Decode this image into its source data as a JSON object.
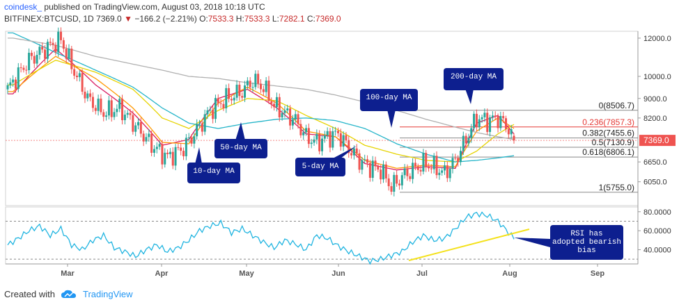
{
  "header": {
    "brand": "coindesk_",
    "published": "published on TradingView.com, August 03, 2018 10:18 UTC",
    "symbol": "BITFINEX:BTCUSD, 1D",
    "last": "7369.0",
    "change": "−166.2 (−2.21%)",
    "o_label": "O:",
    "o": "7533.3",
    "h_label": "H:",
    "h": "7533.3",
    "l_label": "L:",
    "l": "7282.1",
    "c_label": "C:",
    "c": "7369.0"
  },
  "footer": {
    "created": "Created with",
    "brand": "TradingView"
  },
  "colors": {
    "up": "#26a69a",
    "down": "#ef5350",
    "ma5": "#d81b60",
    "ma10": "#ff9800",
    "ma50": "#e6d300",
    "ma100": "#26b5c9",
    "ma200": "#b0b0b0",
    "rsi": "#1fb4e0",
    "trend": "#f4e11a",
    "callout": "#0d1f8f"
  },
  "chart_data": [
    {
      "type": "candlestick",
      "title": "",
      "x_tick_labels": [
        "Mar",
        "Apr",
        "May",
        "Jun",
        "Jul",
        "Aug",
        "Sep"
      ],
      "y_tick_labels": [
        "12000.0",
        "10000.0",
        "9000.0",
        "8200.0",
        "6650.0",
        "6050.0"
      ],
      "y_scale": "log",
      "ylim": [
        5400,
        12400
      ],
      "last_price_label": "7369.0",
      "moving_averages": [
        {
          "name": "5-day MA",
          "anchors": [
            [
              2,
              9200
            ],
            [
              18,
              11400
            ],
            [
              33,
              9600
            ],
            [
              47,
              8400
            ],
            [
              58,
              7200
            ],
            [
              68,
              7400
            ],
            [
              79,
              9000
            ],
            [
              90,
              9400
            ],
            [
              101,
              8600
            ],
            [
              112,
              7600
            ],
            [
              123,
              7500
            ],
            [
              134,
              6600
            ],
            [
              146,
              6400
            ],
            [
              157,
              6500
            ],
            [
              168,
              6450
            ],
            [
              176,
              8000
            ],
            [
              184,
              8300
            ],
            [
              190,
              7600
            ]
          ]
        },
        {
          "name": "10-day MA",
          "anchors": [
            [
              2,
              9300
            ],
            [
              18,
              11000
            ],
            [
              33,
              9900
            ],
            [
              47,
              8600
            ],
            [
              58,
              7300
            ],
            [
              68,
              7250
            ],
            [
              79,
              8800
            ],
            [
              90,
              9500
            ],
            [
              101,
              8800
            ],
            [
              112,
              7700
            ],
            [
              123,
              7500
            ],
            [
              134,
              6700
            ],
            [
              146,
              6450
            ],
            [
              157,
              6550
            ],
            [
              168,
              6500
            ],
            [
              176,
              7700
            ],
            [
              184,
              8200
            ],
            [
              190,
              7800
            ]
          ]
        },
        {
          "name": "50-day MA",
          "anchors": [
            [
              2,
              9600
            ],
            [
              18,
              10800
            ],
            [
              33,
              10200
            ],
            [
              47,
              9400
            ],
            [
              58,
              8200
            ],
            [
              68,
              7800
            ],
            [
              79,
              8500
            ],
            [
              90,
              9000
            ],
            [
              101,
              8900
            ],
            [
              112,
              8300
            ],
            [
              123,
              7800
            ],
            [
              134,
              7200
            ],
            [
              146,
              6900
            ],
            [
              157,
              6700
            ],
            [
              168,
              6650
            ],
            [
              176,
              7000
            ],
            [
              184,
              7600
            ],
            [
              190,
              7950
            ]
          ]
        },
        {
          "name": "100-day MA",
          "anchors": [
            [
              2,
              12300
            ],
            [
              18,
              11200
            ],
            [
              33,
              10300
            ],
            [
              47,
              9500
            ],
            [
              58,
              8600
            ],
            [
              68,
              8000
            ],
            [
              79,
              7800
            ],
            [
              90,
              8000
            ],
            [
              101,
              8150
            ],
            [
              112,
              8200
            ],
            [
              123,
              8100
            ],
            [
              134,
              7800
            ],
            [
              146,
              7250
            ],
            [
              157,
              6900
            ],
            [
              168,
              6650
            ],
            [
              176,
              6700
            ],
            [
              184,
              6780
            ],
            [
              190,
              6850
            ]
          ]
        },
        {
          "name": "200-day MA",
          "anchors": [
            [
              2,
              12000
            ],
            [
              18,
              11600
            ],
            [
              33,
              11000
            ],
            [
              47,
              10600
            ],
            [
              58,
              10300
            ],
            [
              68,
              10000
            ],
            [
              79,
              9900
            ],
            [
              90,
              9700
            ],
            [
              101,
              9550
            ],
            [
              112,
              9400
            ],
            [
              123,
              9150
            ],
            [
              134,
              8850
            ],
            [
              146,
              8500
            ],
            [
              157,
              8150
            ],
            [
              168,
              7850
            ],
            [
              176,
              7650
            ],
            [
              184,
              7500
            ],
            [
              190,
              7400
            ]
          ]
        }
      ],
      "price_anchors": [
        [
          0,
          9400
        ],
        [
          8,
          10800
        ],
        [
          14,
          11400
        ],
        [
          20,
          11900
        ],
        [
          24,
          10500
        ],
        [
          30,
          9000
        ],
        [
          36,
          8400
        ],
        [
          42,
          8600
        ],
        [
          48,
          7900
        ],
        [
          54,
          7200
        ],
        [
          60,
          6800
        ],
        [
          66,
          7100
        ],
        [
          70,
          7600
        ],
        [
          76,
          8500
        ],
        [
          82,
          9000
        ],
        [
          88,
          9300
        ],
        [
          92,
          9800
        ],
        [
          96,
          9500
        ],
        [
          100,
          8700
        ],
        [
          104,
          8400
        ],
        [
          108,
          8100
        ],
        [
          112,
          7500
        ],
        [
          116,
          7300
        ],
        [
          120,
          7500
        ],
        [
          124,
          7600
        ],
        [
          128,
          7100
        ],
        [
          132,
          6700
        ],
        [
          136,
          6500
        ],
        [
          140,
          6400
        ],
        [
          144,
          5900
        ],
        [
          148,
          6200
        ],
        [
          152,
          6400
        ],
        [
          156,
          6600
        ],
        [
          160,
          6500
        ],
        [
          164,
          6300
        ],
        [
          168,
          6700
        ],
        [
          172,
          7400
        ],
        [
          176,
          8200
        ],
        [
          180,
          8100
        ],
        [
          184,
          8200
        ],
        [
          188,
          7800
        ],
        [
          190,
          7369
        ]
      ],
      "fib_levels": [
        {
          "label": "0(8506.7)",
          "value": 8506.7
        },
        {
          "label": "0.236(7857.3)",
          "value": 7857.3
        },
        {
          "label": "0.382(7455.6)",
          "value": 7455.6
        },
        {
          "label": "0.5(7130.9)",
          "value": 7130.9
        },
        {
          "label": "0.618(6806.1)",
          "value": 6806.1
        },
        {
          "label": "1(5755.0)",
          "value": 5755.0
        }
      ],
      "callouts": [
        {
          "text": "10-day MA"
        },
        {
          "text": "50-day MA"
        },
        {
          "text": "5-day MA"
        },
        {
          "text": "100-day MA"
        },
        {
          "text": "200-day MA"
        }
      ]
    },
    {
      "type": "line",
      "series": [
        {
          "name": "RSI",
          "anchors": [
            [
              0,
              45
            ],
            [
              4,
              52
            ],
            [
              8,
              60
            ],
            [
              12,
              65
            ],
            [
              16,
              55
            ],
            [
              20,
              62
            ],
            [
              24,
              45
            ],
            [
              28,
              40
            ],
            [
              32,
              50
            ],
            [
              36,
              55
            ],
            [
              40,
              42
            ],
            [
              44,
              38
            ],
            [
              48,
              33
            ],
            [
              52,
              40
            ],
            [
              56,
              45
            ],
            [
              60,
              38
            ],
            [
              64,
              42
            ],
            [
              68,
              50
            ],
            [
              72,
              60
            ],
            [
              76,
              65
            ],
            [
              80,
              68
            ],
            [
              84,
              58
            ],
            [
              88,
              62
            ],
            [
              92,
              55
            ],
            [
              96,
              48
            ],
            [
              100,
              42
            ],
            [
              104,
              50
            ],
            [
              108,
              46
            ],
            [
              112,
              40
            ],
            [
              116,
              55
            ],
            [
              120,
              52
            ],
            [
              124,
              44
            ],
            [
              128,
              38
            ],
            [
              132,
              33
            ],
            [
              136,
              28
            ],
            [
              140,
              30
            ],
            [
              144,
              34
            ],
            [
              148,
              38
            ],
            [
              152,
              48
            ],
            [
              156,
              55
            ],
            [
              160,
              50
            ],
            [
              164,
              52
            ],
            [
              168,
              62
            ],
            [
              172,
              74
            ],
            [
              176,
              78
            ],
            [
              180,
              76
            ],
            [
              184,
              70
            ],
            [
              188,
              58
            ],
            [
              190,
              52
            ]
          ]
        }
      ],
      "y_tick_labels": [
        "80.0000",
        "60.0000",
        "40.0000"
      ],
      "ylim": [
        25,
        85
      ],
      "reference_lines": [
        70,
        30
      ],
      "callouts": [
        {
          "text": "RSI has adopted bearish bias"
        }
      ]
    }
  ]
}
